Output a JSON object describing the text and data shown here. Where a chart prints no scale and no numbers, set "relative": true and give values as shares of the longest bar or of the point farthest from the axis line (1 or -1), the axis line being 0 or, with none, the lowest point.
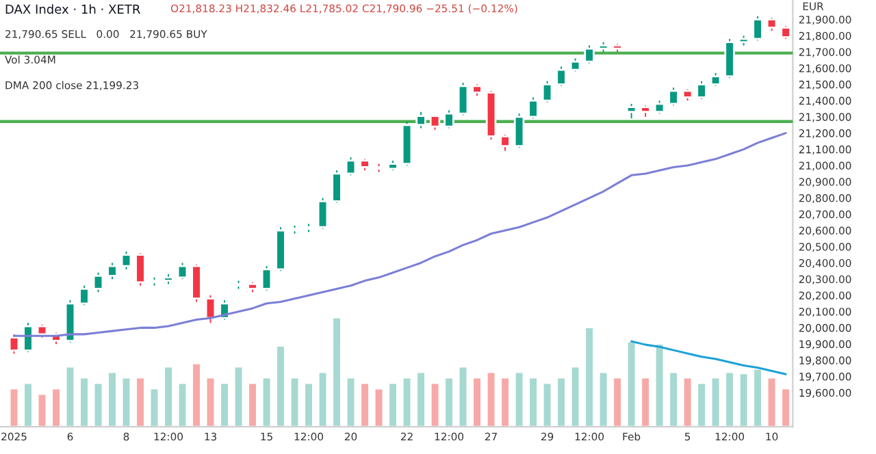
{
  "chart_data": [
    {
      "type": "candlestick",
      "title": "DAX Index · 1h · XETR",
      "ylabel": "EUR",
      "annotations": [
        "O21,818.23 H21,832.46 L21,785.02 C21,790.96 −25.51 (−0.12%)",
        "21,790.65 SELL   0.00   21,790.65 BUY",
        "Vol 3.04M",
        "DMA 200 close 21,199.23"
      ],
      "categories": [
        "2025",
        null,
        null,
        null,
        "6",
        null,
        null,
        null,
        "8",
        null,
        null,
        "12:00",
        null,
        null,
        "13",
        null,
        null,
        null,
        "15",
        null,
        null,
        "12:00",
        null,
        null,
        "20",
        null,
        null,
        null,
        "22",
        null,
        null,
        "12:00",
        null,
        null,
        "27",
        null,
        null,
        null,
        "29",
        null,
        null,
        "12:00",
        null,
        null,
        "Feb",
        null,
        null,
        null,
        "5",
        null,
        null,
        "12:00",
        null,
        null,
        "10",
        null
      ],
      "ohlc": [
        [
          19940,
          19960,
          19840,
          19860
        ],
        [
          19860,
          20030,
          19850,
          20010
        ],
        [
          20010,
          20020,
          19940,
          19960
        ],
        [
          19960,
          19970,
          19900,
          19920
        ],
        [
          19920,
          20170,
          19910,
          20150
        ],
        [
          20150,
          20260,
          20140,
          20240
        ],
        [
          20240,
          20340,
          20220,
          20320
        ],
        [
          20320,
          20400,
          20300,
          20380
        ],
        [
          20380,
          20470,
          20360,
          20450
        ],
        [
          20450,
          20460,
          20260,
          20280
        ],
        [
          20280,
          20310,
          20260,
          20290
        ],
        [
          20290,
          20330,
          20270,
          20310
        ],
        [
          20310,
          20400,
          20300,
          20380
        ],
        [
          20380,
          20390,
          20160,
          20180
        ],
        [
          20180,
          20200,
          20030,
          20060
        ],
        [
          20060,
          20170,
          20050,
          20150
        ],
        [
          20260,
          20290,
          20240,
          20270
        ],
        [
          20270,
          20280,
          20220,
          20240
        ],
        [
          20240,
          20380,
          20230,
          20360
        ],
        [
          20360,
          20620,
          20350,
          20600
        ],
        [
          20600,
          20630,
          20580,
          20610
        ],
        [
          20610,
          20640,
          20590,
          20620
        ],
        [
          20620,
          20800,
          20610,
          20780
        ],
        [
          20780,
          20970,
          20770,
          20950
        ],
        [
          20950,
          21050,
          20940,
          21030
        ],
        [
          21030,
          21040,
          20970,
          20990
        ],
        [
          20990,
          21010,
          20960,
          20980
        ],
        [
          20980,
          21030,
          20970,
          21010
        ],
        [
          21010,
          21270,
          21000,
          21250
        ],
        [
          21250,
          21330,
          21230,
          21305
        ],
        [
          21305,
          21310,
          21220,
          21240
        ],
        [
          21240,
          21340,
          21230,
          21320
        ],
        [
          21320,
          21510,
          21310,
          21490
        ],
        [
          21490,
          21500,
          21430,
          21450
        ],
        [
          21450,
          21460,
          21160,
          21180
        ],
        [
          21180,
          21190,
          21090,
          21120
        ],
        [
          21120,
          21320,
          21110,
          21300
        ],
        [
          21300,
          21420,
          21290,
          21400
        ],
        [
          21400,
          21520,
          21390,
          21500
        ],
        [
          21500,
          21610,
          21490,
          21590
        ],
        [
          21590,
          21660,
          21580,
          21640
        ],
        [
          21640,
          21740,
          21630,
          21720
        ],
        [
          21720,
          21760,
          21700,
          21740
        ],
        [
          21740,
          21750,
          21700,
          21720
        ],
        [
          21330,
          21380,
          21290,
          21360
        ],
        [
          21360,
          21370,
          21300,
          21330
        ],
        [
          21330,
          21400,
          21320,
          21380
        ],
        [
          21380,
          21480,
          21370,
          21460
        ],
        [
          21460,
          21470,
          21400,
          21420
        ],
        [
          21420,
          21520,
          21410,
          21500
        ],
        [
          21500,
          21570,
          21490,
          21550
        ],
        [
          21550,
          21780,
          21540,
          21760
        ],
        [
          21760,
          21800,
          21740,
          21780
        ],
        [
          21780,
          21920,
          21770,
          21900
        ],
        [
          21900,
          21910,
          21830,
          21850
        ],
        [
          21850,
          21860,
          21780,
          21791
        ]
      ],
      "colors": [
        "#f23645",
        "#089981",
        "#f23645",
        "#f23645",
        "#089981",
        "#089981",
        "#089981",
        "#089981",
        "#089981",
        "#f23645",
        "#089981",
        "#089981",
        "#089981",
        "#f23645",
        "#f23645",
        "#089981",
        "#089981",
        "#f23645",
        "#089981",
        "#089981",
        "#089981",
        "#089981",
        "#089981",
        "#089981",
        "#089981",
        "#f23645",
        "#f23645",
        "#089981",
        "#089981",
        "#089981",
        "#f23645",
        "#089981",
        "#089981",
        "#f23645",
        "#f23645",
        "#f23645",
        "#089981",
        "#089981",
        "#089981",
        "#089981",
        "#089981",
        "#089981",
        "#089981",
        "#f23645",
        "#089981",
        "#f23645",
        "#089981",
        "#089981",
        "#f23645",
        "#089981",
        "#089981",
        "#089981",
        "#089981",
        "#089981",
        "#f23645",
        "#f23645"
      ],
      "series": [
        {
          "type": "line",
          "color": "#7b7fd6",
          "values": [
            19950,
            19950,
            19950,
            19950,
            19960,
            19960,
            19970,
            19980,
            19990,
            20000,
            20000,
            20010,
            20030,
            20050,
            20060,
            20080,
            20100,
            20120,
            20150,
            20160,
            20180,
            20200,
            20220,
            20240,
            20260,
            20290,
            20310,
            20340,
            20370,
            20400,
            20440,
            20470,
            20510,
            20540,
            20580,
            20600,
            20620,
            20650,
            20680,
            20720,
            20760,
            20800,
            20840,
            20890,
            20940,
            20950,
            20970,
            20990,
            21000,
            21020,
            21040,
            21070,
            21100,
            21140,
            21170,
            21200
          ]
        }
      ],
      "ref_lines": [
        {
          "axis": "y",
          "value": 21693,
          "color": "#4caf50"
        },
        {
          "axis": "y",
          "value": 21271,
          "color": "#4caf50"
        }
      ],
      "ylim": [
        19390,
        22020
      ],
      "yticks": [
        {
          "value": 19600,
          "label": "19,600.00"
        },
        {
          "value": 19700,
          "label": "19,700.00"
        },
        {
          "value": 19800,
          "label": "19,800.00"
        },
        {
          "value": 19900,
          "label": "19,900.00"
        },
        {
          "value": 20000,
          "label": "20,000.00"
        },
        {
          "value": 20100,
          "label": "20,100.00"
        },
        {
          "value": 20200,
          "label": "20,200.00"
        },
        {
          "value": 20300,
          "label": "20,300.00"
        },
        {
          "value": 20400,
          "label": "20,400.00"
        },
        {
          "value": 20500,
          "label": "20,500.00"
        },
        {
          "value": 20600,
          "label": "20,600.00"
        },
        {
          "value": 20700,
          "label": "20,700.00"
        },
        {
          "value": 20800,
          "label": "20,800.00"
        },
        {
          "value": 20900,
          "label": "20,900.00"
        },
        {
          "value": 21000,
          "label": "21,000.00"
        },
        {
          "value": 21100,
          "label": "21,100.00"
        },
        {
          "value": 21200,
          "label": "21,200.00"
        },
        {
          "value": 21300,
          "label": "21,300.00"
        },
        {
          "value": 21400,
          "label": "21,400.00"
        },
        {
          "value": 21500,
          "label": "21,500.00"
        },
        {
          "value": 21600,
          "label": "21,600.00"
        },
        {
          "value": 21700,
          "label": "21,700.00"
        },
        {
          "value": 21800,
          "label": "21,800.00"
        },
        {
          "value": 21900,
          "label": "21,900.00"
        }
      ]
    },
    {
      "type": "bar",
      "relative": true,
      "categories": [
        null,
        null,
        null,
        null,
        null,
        null,
        null,
        null,
        null,
        null,
        null,
        null,
        null,
        null,
        null,
        null,
        null,
        null,
        null,
        null,
        null,
        null,
        null,
        null,
        null,
        null,
        null,
        null,
        null,
        null,
        null,
        null,
        null,
        null,
        null,
        null,
        null,
        null,
        null,
        null,
        null,
        null,
        null,
        null,
        null,
        null,
        null,
        null,
        null,
        null,
        null,
        null,
        null,
        null,
        null,
        null
      ],
      "values": [
        0.35,
        0.4,
        0.3,
        0.35,
        0.55,
        0.45,
        0.4,
        0.5,
        0.45,
        0.45,
        0.35,
        0.55,
        0.4,
        0.58,
        0.45,
        0.4,
        0.55,
        0.4,
        0.45,
        0.74,
        0.45,
        0.4,
        0.5,
        1.0,
        0.45,
        0.4,
        0.35,
        0.4,
        0.45,
        0.5,
        0.4,
        0.45,
        0.55,
        0.45,
        0.5,
        0.45,
        0.5,
        0.45,
        0.4,
        0.45,
        0.55,
        0.91,
        0.5,
        0.45,
        0.78,
        0.45,
        0.76,
        0.5,
        0.45,
        0.4,
        0.45,
        0.5,
        0.49,
        0.53,
        0.45,
        0.35
      ],
      "colors": [
        "#f7a9a7",
        "#a6d9d1",
        "#f7a9a7",
        "#f7a9a7",
        "#a6d9d1",
        "#a6d9d1",
        "#a6d9d1",
        "#a6d9d1",
        "#a6d9d1",
        "#f7a9a7",
        "#a6d9d1",
        "#a6d9d1",
        "#a6d9d1",
        "#f7a9a7",
        "#f7a9a7",
        "#a6d9d1",
        "#a6d9d1",
        "#f7a9a7",
        "#a6d9d1",
        "#a6d9d1",
        "#a6d9d1",
        "#a6d9d1",
        "#a6d9d1",
        "#a6d9d1",
        "#a6d9d1",
        "#f7a9a7",
        "#f7a9a7",
        "#a6d9d1",
        "#a6d9d1",
        "#a6d9d1",
        "#f7a9a7",
        "#a6d9d1",
        "#a6d9d1",
        "#f7a9a7",
        "#f7a9a7",
        "#f7a9a7",
        "#a6d9d1",
        "#a6d9d1",
        "#a6d9d1",
        "#a6d9d1",
        "#a6d9d1",
        "#a6d9d1",
        "#a6d9d1",
        "#f7a9a7",
        "#a6d9d1",
        "#f7a9a7",
        "#a6d9d1",
        "#a6d9d1",
        "#f7a9a7",
        "#a6d9d1",
        "#a6d9d1",
        "#a6d9d1",
        "#a6d9d1",
        "#a6d9d1",
        "#f7a9a7",
        "#f7a9a7"
      ],
      "series": [
        {
          "type": "line",
          "color": "#1da1d8",
          "values": [
            null,
            null,
            null,
            null,
            null,
            null,
            null,
            null,
            null,
            null,
            null,
            null,
            null,
            null,
            null,
            null,
            null,
            null,
            null,
            null,
            null,
            null,
            null,
            null,
            null,
            null,
            null,
            null,
            null,
            null,
            null,
            null,
            null,
            null,
            null,
            null,
            null,
            null,
            null,
            null,
            null,
            null,
            null,
            null,
            0.78,
            0.75,
            0.73,
            0.7,
            0.67,
            0.64,
            0.62,
            0.59,
            0.56,
            0.54,
            0.51,
            0.48
          ]
        }
      ]
    }
  ]
}
